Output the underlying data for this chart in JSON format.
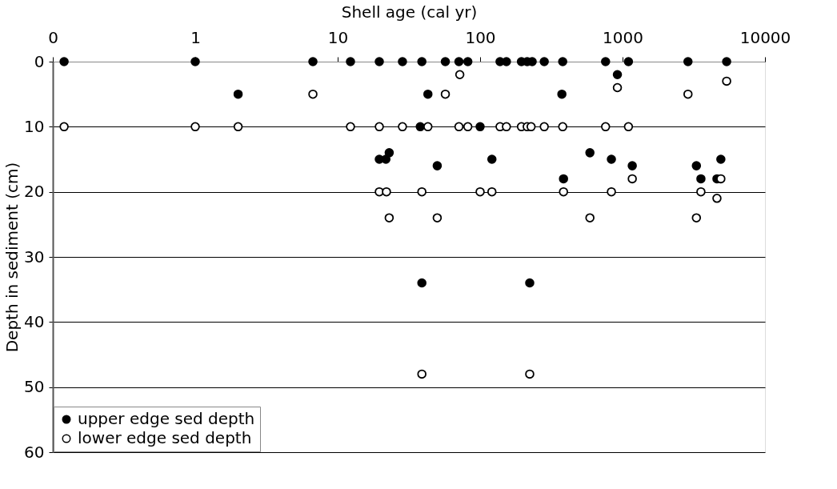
{
  "chart_data": {
    "type": "scatter",
    "xlabel": "Shell age (cal yr)",
    "ylabel": "Depth in sediment (cm)",
    "log": "x",
    "xlim": [
      0.1,
      10000
    ],
    "xticks": [
      {
        "value": 0.1,
        "label": "0"
      },
      1,
      10,
      100,
      1000,
      10000
    ],
    "ylim": [
      60,
      0
    ],
    "yticks": [
      0,
      10,
      20,
      30,
      40,
      50,
      60
    ],
    "grid": "y",
    "legend": "bottom left",
    "marker": "circle",
    "series": [
      {
        "name": "upper edge sed depth",
        "color": "#000000",
        "x": [
          0.12,
          1,
          6.7,
          12.3,
          19.6,
          28.5,
          39,
          57,
          71,
          82,
          138,
          153,
          195,
          214,
          232,
          282,
          380,
          760,
          1100,
          2880,
          5380,
          920,
          2,
          43,
          375,
          38,
          100,
          23,
          590,
          19.6,
          21.8,
          121,
          835,
          4900,
          50,
          1170,
          3300,
          385,
          3550,
          4600,
          39,
          223
        ],
        "values": [
          0,
          0,
          0,
          0,
          0,
          0,
          0,
          0,
          0,
          0,
          0,
          0,
          0,
          0,
          0,
          0,
          0,
          0,
          0,
          0,
          0,
          2,
          5,
          5,
          5,
          10,
          10,
          14,
          14,
          15,
          15,
          15,
          15,
          15,
          16,
          16,
          16,
          18,
          18,
          18,
          34,
          34
        ]
      },
      {
        "name": "lower edge sed depth",
        "color": "#000000",
        "x": [
          0.12,
          1,
          2,
          12.3,
          19.6,
          28.5,
          43,
          71,
          82,
          138,
          153,
          195,
          214,
          228,
          282,
          380,
          760,
          1100,
          72,
          5380,
          920,
          6.7,
          57,
          2880,
          1170,
          4900,
          19.6,
          22,
          39,
          100,
          121,
          385,
          835,
          3550,
          4600,
          23,
          50,
          590,
          3300,
          39,
          223
        ],
        "values": [
          10,
          10,
          10,
          10,
          10,
          10,
          10,
          10,
          10,
          10,
          10,
          10,
          10,
          10,
          10,
          10,
          10,
          10,
          2,
          3,
          4,
          5,
          5,
          5,
          18,
          18,
          20,
          20,
          20,
          20,
          20,
          20,
          20,
          20,
          21,
          24,
          24,
          24,
          24,
          48,
          48
        ]
      }
    ]
  }
}
